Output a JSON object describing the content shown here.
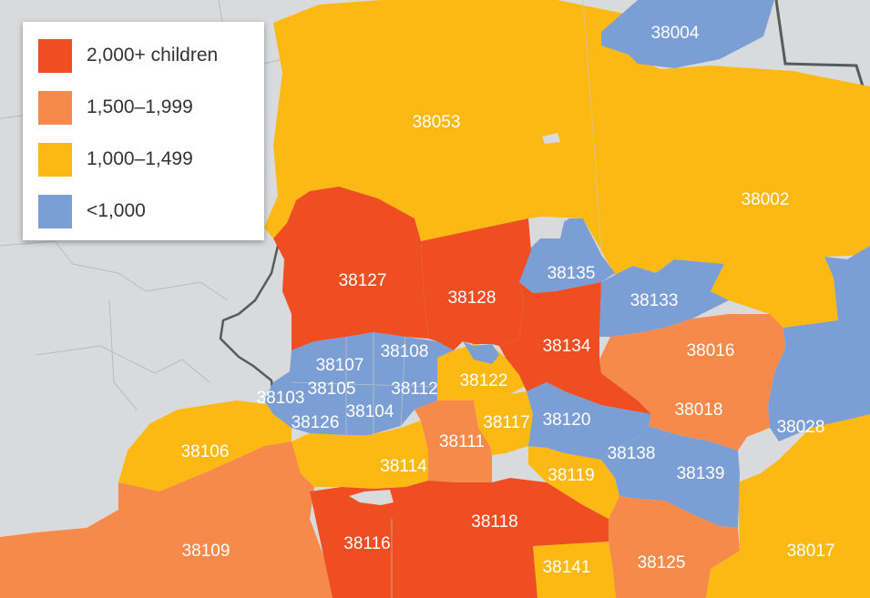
{
  "colors": {
    "background": "#d9dadc",
    "boundary": "#5a5a5a",
    "tier_2000": "#ef4e23",
    "tier_1500": "#f58a4b",
    "tier_1000": "#fdb913",
    "tier_lt1000": "#7b9fd4"
  },
  "legend": {
    "items": [
      {
        "label": "2,000+ children",
        "color": "#ef4e23"
      },
      {
        "label": "1,500–1,999",
        "color": "#f58a4b"
      },
      {
        "label": "1,000–1,499",
        "color": "#fdb913"
      },
      {
        "label": "<1,000",
        "color": "#7b9fd4"
      }
    ]
  },
  "zip_codes": {
    "z38004": "38004",
    "z38053": "38053",
    "z38002": "38002",
    "z38127": "38127",
    "z38128": "38128",
    "z38135": "38135",
    "z38133": "38133",
    "z38134": "38134",
    "z38016": "38016",
    "z38108": "38108",
    "z38107": "38107",
    "z38122": "38122",
    "z38103": "38103",
    "z38105": "38105",
    "z38112": "38112",
    "z38104": "38104",
    "z38120": "38120",
    "z38018": "38018",
    "z38028": "38028",
    "z38126": "38126",
    "z38117": "38117",
    "z38111": "38111",
    "z38106": "38106",
    "z38114": "38114",
    "z38138": "38138",
    "z38139": "38139",
    "z38119": "38119",
    "z38118": "38118",
    "z38116": "38116",
    "z38109": "38109",
    "z38141": "38141",
    "z38125": "38125",
    "z38017": "38017"
  }
}
